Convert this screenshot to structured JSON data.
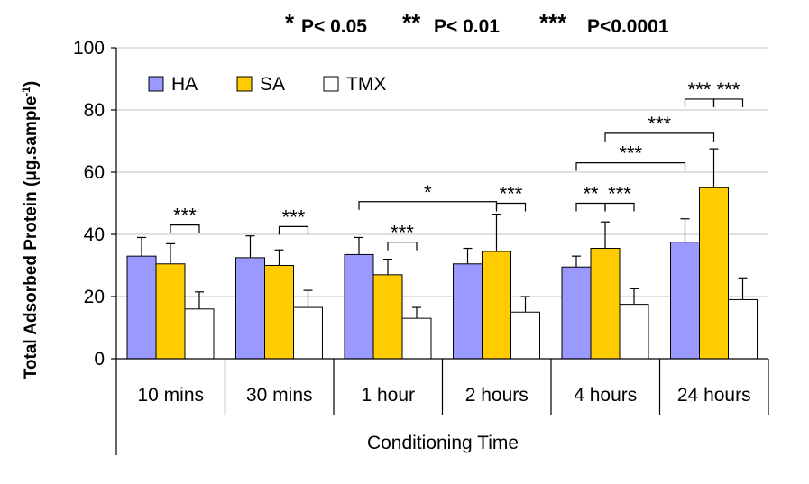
{
  "significance_key": {
    "entries": [
      {
        "stars": "*",
        "label": "P< 0.05"
      },
      {
        "stars": "**",
        "label": "P< 0.01"
      },
      {
        "stars": "***",
        "label": "P<0.0001"
      }
    ]
  },
  "chart_data": {
    "type": "bar",
    "title": "",
    "ylabel": "Total Adsorbed Protein (μg.sample",
    "ylabel_superscript": "-1",
    "ylabel_close": ")",
    "xlabel": "Conditioning Time",
    "categories": [
      "10 mins",
      "30 mins",
      "1 hour",
      "2 hours",
      "4 hours",
      "24 hours"
    ],
    "ylim": [
      0,
      100
    ],
    "yticks": [
      0,
      20,
      40,
      60,
      80,
      100
    ],
    "grid": true,
    "legend_position": "top-left",
    "series": [
      {
        "name": "HA",
        "color": "#9999ff",
        "values": [
          33,
          32.5,
          33.5,
          30.5,
          29.5,
          37.5
        ],
        "errors": [
          6,
          7,
          5.5,
          5,
          3.5,
          7.5
        ]
      },
      {
        "name": "SA",
        "color": "#ffcc00",
        "values": [
          30.5,
          30,
          27,
          34.5,
          35.5,
          55
        ],
        "errors": [
          6.5,
          5,
          5,
          12,
          8.5,
          12.5
        ]
      },
      {
        "name": "TMX",
        "color": "#ffffff",
        "values": [
          16,
          16.5,
          13,
          15,
          17.5,
          19
        ],
        "errors": [
          5.5,
          5.5,
          3.5,
          5,
          5,
          7
        ]
      }
    ],
    "annotations": [
      {
        "label": "***",
        "from": [
          0,
          1
        ],
        "to": [
          0,
          2
        ],
        "y": 43
      },
      {
        "label": "***",
        "from": [
          1,
          1
        ],
        "to": [
          1,
          2
        ],
        "y": 42.5
      },
      {
        "label": "***",
        "from": [
          2,
          1
        ],
        "to": [
          2,
          2
        ],
        "y": 37.5
      },
      {
        "label": "*",
        "from": [
          2,
          0
        ],
        "to": [
          3,
          1
        ],
        "y": 50.5
      },
      {
        "label": "***",
        "from": [
          3,
          1
        ],
        "to": [
          3,
          2
        ],
        "y": 50
      },
      {
        "label": "**",
        "from": [
          4,
          0
        ],
        "to": [
          4,
          1
        ],
        "y": 50
      },
      {
        "label": "***",
        "from": [
          4,
          1
        ],
        "to": [
          4,
          2
        ],
        "y": 50
      },
      {
        "label": "***",
        "from": [
          4,
          0
        ],
        "to": [
          5,
          0
        ],
        "y": 63
      },
      {
        "label": "***",
        "from": [
          4,
          1
        ],
        "to": [
          5,
          1
        ],
        "y": 72.5
      },
      {
        "label": "***",
        "from": [
          5,
          0
        ],
        "to": [
          5,
          1
        ],
        "y": 83.5
      },
      {
        "label": "***",
        "from": [
          5,
          1
        ],
        "to": [
          5,
          2
        ],
        "y": 83.5
      }
    ]
  }
}
